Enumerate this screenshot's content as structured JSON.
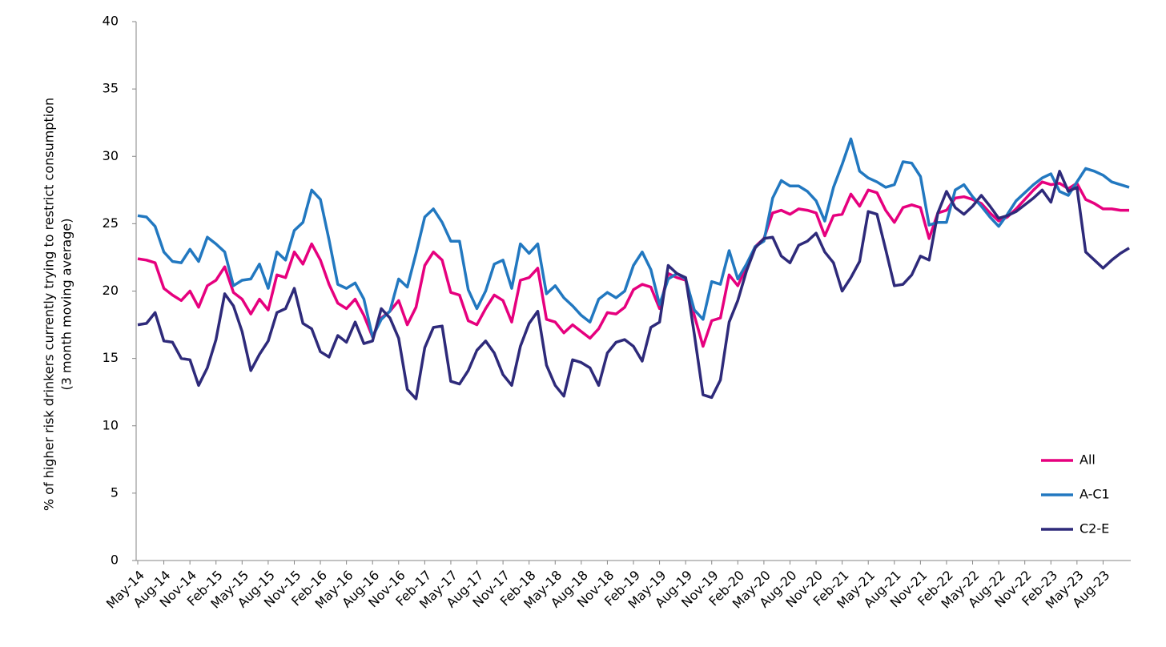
{
  "chart_data": {
    "type": "line",
    "ylabel": [
      "% of higher risk drinkers currently trying to restrict consumption",
      "(3 month moving average)"
    ],
    "categories": [
      "May-14",
      null,
      null,
      "Aug-14",
      null,
      null,
      "Nov-14",
      null,
      null,
      "Feb-15",
      null,
      null,
      "May-15",
      null,
      null,
      "Aug-15",
      null,
      null,
      "Nov-15",
      null,
      null,
      "Feb-16",
      null,
      null,
      "May-16",
      null,
      null,
      "Aug-16",
      null,
      null,
      "Nov-16",
      null,
      null,
      "Feb-17",
      null,
      null,
      "May-17",
      null,
      null,
      "Aug-17",
      null,
      null,
      "Nov-17",
      null,
      null,
      "Feb-18",
      null,
      null,
      "May-18",
      null,
      null,
      "Aug-18",
      null,
      null,
      "Nov-18",
      null,
      null,
      "Feb-19",
      null,
      null,
      "May-19",
      null,
      null,
      "Aug-19",
      null,
      null,
      "Nov-19",
      null,
      null,
      "Feb-20",
      null,
      null,
      "May-20",
      null,
      null,
      "Aug-20",
      null,
      null,
      "Nov-20",
      null,
      null,
      "Feb-21",
      null,
      null,
      "May-21",
      null,
      null,
      "Aug-21",
      null,
      null,
      "Nov-21",
      null,
      null,
      "Feb-22",
      null,
      null,
      "May-22",
      null,
      null,
      "Aug-22",
      null,
      null,
      "Nov-22",
      null,
      null,
      "Feb-23",
      null,
      null,
      "May-23",
      null,
      null,
      "Aug-23",
      null,
      null,
      null
    ],
    "series": [
      {
        "name": "All",
        "color": "#e6007e",
        "values": [
          22.4,
          22.3,
          22.1,
          20.2,
          19.7,
          19.3,
          20.0,
          18.8,
          20.4,
          20.8,
          21.8,
          19.9,
          19.4,
          18.3,
          19.4,
          18.6,
          21.2,
          21.0,
          22.9,
          22.0,
          23.5,
          22.3,
          20.5,
          19.1,
          18.7,
          19.4,
          18.2,
          16.6,
          18.0,
          18.5,
          19.3,
          17.5,
          18.8,
          21.9,
          22.9,
          22.3,
          19.9,
          19.7,
          17.8,
          17.5,
          18.7,
          19.7,
          19.3,
          17.7,
          20.8,
          21.0,
          21.7,
          17.9,
          17.7,
          16.9,
          17.5,
          17.0,
          16.5,
          17.2,
          18.4,
          18.3,
          18.8,
          20.1,
          20.5,
          20.3,
          18.7,
          21.3,
          21.0,
          20.8,
          18.2,
          15.9,
          17.8,
          18.0,
          21.2,
          20.4,
          21.8,
          23.3,
          23.9,
          25.8,
          26.0,
          25.7,
          26.1,
          26.0,
          25.8,
          24.1,
          25.6,
          25.7,
          27.2,
          26.3,
          27.5,
          27.3,
          26.0,
          25.1,
          26.2,
          26.4,
          26.2,
          23.9,
          25.8,
          26.0,
          26.9,
          27.0,
          26.8,
          26.5,
          25.8,
          25.2,
          25.5,
          26.1,
          26.8,
          27.5,
          28.1,
          27.9,
          28.0,
          27.6,
          28.0,
          26.8,
          26.5,
          26.1,
          26.1,
          26.0,
          26.0
        ]
      },
      {
        "name": "A-C1",
        "color": "#2278c0",
        "values": [
          25.6,
          25.5,
          24.8,
          22.9,
          22.2,
          22.1,
          23.1,
          22.2,
          24.0,
          23.5,
          22.9,
          20.4,
          20.8,
          20.9,
          22.0,
          20.2,
          22.9,
          22.3,
          24.5,
          25.1,
          27.5,
          26.8,
          23.8,
          20.5,
          20.2,
          20.6,
          19.4,
          16.6,
          17.9,
          18.5,
          20.9,
          20.3,
          22.8,
          25.5,
          26.1,
          25.1,
          23.7,
          23.7,
          20.1,
          18.7,
          20.0,
          22.0,
          22.3,
          20.2,
          23.5,
          22.8,
          23.5,
          19.8,
          20.4,
          19.5,
          18.9,
          18.2,
          17.7,
          19.4,
          19.9,
          19.5,
          20.0,
          21.9,
          22.9,
          21.6,
          19.0,
          20.9,
          21.3,
          20.9,
          18.6,
          17.9,
          20.7,
          20.5,
          23.0,
          20.9,
          22.0,
          23.3,
          23.7,
          26.9,
          28.2,
          27.8,
          27.8,
          27.4,
          26.7,
          25.2,
          27.7,
          29.4,
          31.3,
          28.9,
          28.4,
          28.1,
          27.7,
          27.9,
          29.6,
          29.5,
          28.5,
          24.9,
          25.1,
          25.1,
          27.5,
          27.9,
          27.0,
          26.3,
          25.5,
          24.8,
          25.7,
          26.7,
          27.3,
          27.9,
          28.4,
          28.7,
          27.4,
          27.1,
          28.1,
          29.1,
          28.9,
          28.6,
          28.1,
          27.9,
          27.7
        ]
      },
      {
        "name": "C2-E",
        "color": "#2e2a7a",
        "values": [
          17.5,
          17.6,
          18.4,
          16.3,
          16.2,
          15.0,
          14.9,
          13.0,
          14.3,
          16.4,
          19.8,
          18.9,
          17.0,
          14.1,
          15.3,
          16.3,
          18.4,
          18.7,
          20.2,
          17.6,
          17.2,
          15.5,
          15.1,
          16.7,
          16.2,
          17.7,
          16.1,
          16.3,
          18.7,
          18.0,
          16.5,
          12.7,
          12.0,
          15.8,
          17.3,
          17.4,
          13.3,
          13.1,
          14.1,
          15.6,
          16.3,
          15.4,
          13.8,
          13.0,
          15.9,
          17.6,
          18.5,
          14.5,
          13.0,
          12.2,
          14.9,
          14.7,
          14.3,
          13.0,
          15.4,
          16.2,
          16.4,
          15.9,
          14.8,
          17.3,
          17.7,
          21.9,
          21.3,
          21.0,
          16.8,
          12.3,
          12.1,
          13.4,
          17.7,
          19.3,
          21.5,
          23.2,
          23.9,
          24.0,
          22.6,
          22.1,
          23.4,
          23.7,
          24.3,
          22.9,
          22.1,
          20.0,
          21.0,
          22.2,
          25.9,
          25.7,
          23.1,
          20.4,
          20.5,
          21.2,
          22.6,
          22.3,
          25.8,
          27.4,
          26.2,
          25.7,
          26.3,
          27.1,
          26.3,
          25.4,
          25.6,
          25.9,
          26.4,
          26.9,
          27.5,
          26.6,
          28.9,
          27.4,
          27.7,
          22.9,
          22.3,
          21.7,
          22.3,
          22.8,
          23.2
        ]
      }
    ],
    "ylim": [
      0,
      40
    ],
    "yticks": [
      0,
      5,
      10,
      15,
      20,
      25,
      30,
      35,
      40
    ],
    "grid": false,
    "legend": "lower right"
  }
}
